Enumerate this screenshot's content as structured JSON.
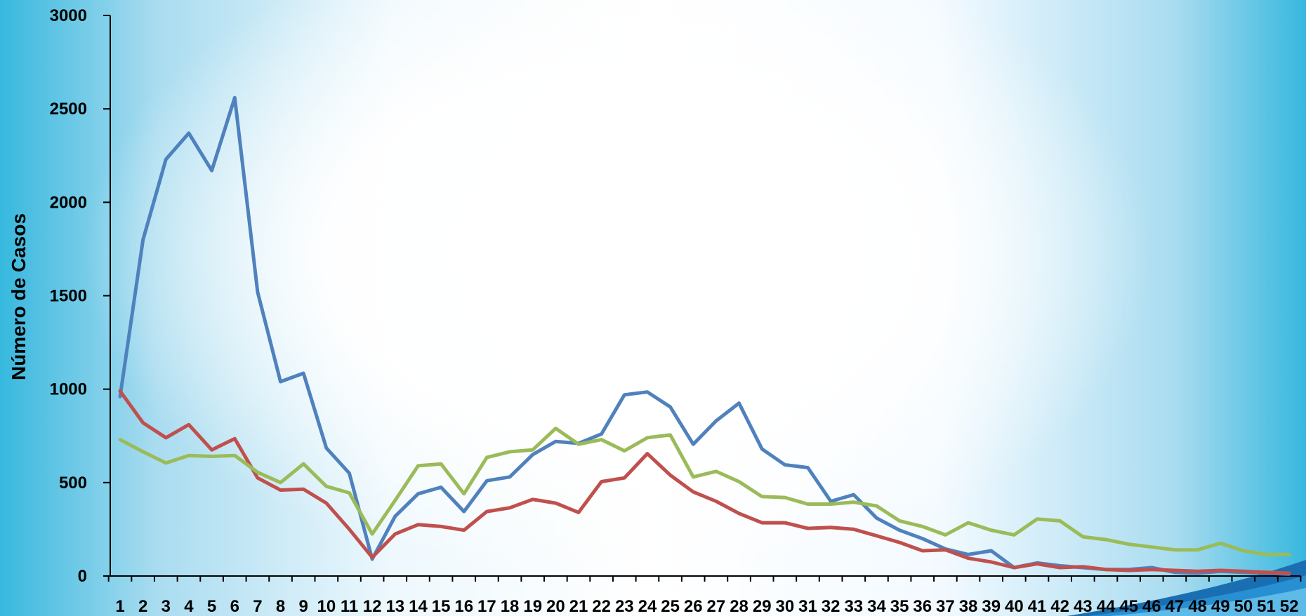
{
  "chart_data": {
    "type": "line",
    "title": "",
    "xlabel": "",
    "ylabel": "Número de Casos",
    "ylim": [
      0,
      3000
    ],
    "yticks": [
      0,
      500,
      1000,
      1500,
      2000,
      2500,
      3000
    ],
    "grid": false,
    "legend": "none",
    "x": [
      1,
      2,
      3,
      4,
      5,
      6,
      7,
      8,
      9,
      10,
      11,
      12,
      13,
      14,
      15,
      16,
      17,
      18,
      19,
      20,
      21,
      22,
      23,
      24,
      25,
      26,
      27,
      28,
      29,
      30,
      31,
      32,
      33,
      34,
      35,
      36,
      37,
      38,
      39,
      40,
      41,
      42,
      43,
      44,
      45,
      46,
      47,
      48,
      49,
      50,
      51,
      52
    ],
    "series": [
      {
        "color": "#4f81bd",
        "values": [
          960,
          1800,
          2230,
          2370,
          2170,
          2560,
          1520,
          1040,
          1085,
          685,
          550,
          90,
          320,
          440,
          475,
          345,
          510,
          530,
          650,
          720,
          710,
          760,
          970,
          985,
          905,
          705,
          830,
          925,
          680,
          595,
          580,
          400,
          435,
          310,
          245,
          200,
          145,
          115,
          135,
          45,
          70,
          55,
          45,
          35,
          35,
          45,
          20,
          15,
          25,
          20,
          15,
          10
        ]
      },
      {
        "color": "#c0504d",
        "values": [
          990,
          820,
          740,
          810,
          675,
          735,
          525,
          460,
          465,
          390,
          250,
          100,
          225,
          275,
          265,
          245,
          345,
          365,
          410,
          390,
          340,
          505,
          525,
          655,
          540,
          450,
          400,
          335,
          285,
          285,
          255,
          260,
          250,
          215,
          180,
          135,
          140,
          95,
          75,
          45,
          65,
          45,
          50,
          35,
          30,
          35,
          30,
          25,
          30,
          25,
          20,
          15
        ]
      },
      {
        "color": "#9bbb59",
        "values": [
          730,
          665,
          605,
          645,
          640,
          645,
          555,
          500,
          600,
          480,
          445,
          225,
          405,
          590,
          600,
          440,
          635,
          665,
          675,
          790,
          705,
          730,
          670,
          740,
          755,
          530,
          560,
          505,
          425,
          420,
          385,
          385,
          395,
          375,
          295,
          265,
          220,
          285,
          245,
          220,
          305,
          295,
          210,
          195,
          170,
          155,
          140,
          140,
          175,
          135,
          115,
          115
        ]
      }
    ]
  }
}
